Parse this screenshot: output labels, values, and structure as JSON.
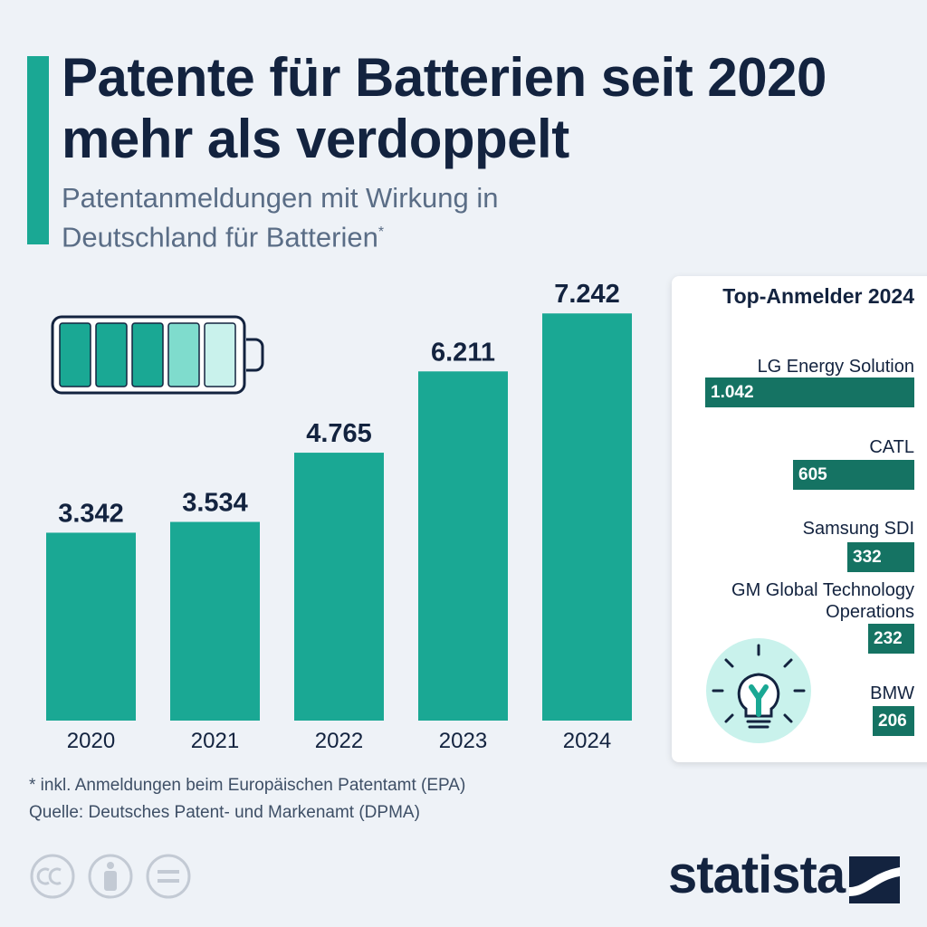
{
  "title": "Patente für Batterien seit 2020 mehr als verdoppelt",
  "subtitle": "Patentanmeldungen mit Wirkung in Deutschland für Batterien",
  "subtitle_marker": "*",
  "chart_data": [
    {
      "type": "bar",
      "categories": [
        "2020",
        "2021",
        "2022",
        "2023",
        "2024"
      ],
      "values": [
        3342,
        3534,
        4765,
        6211,
        7242
      ],
      "value_labels": [
        "3.342",
        "3.534",
        "4.765",
        "6.211",
        "7.242"
      ],
      "ylim": [
        0,
        7600
      ],
      "grid": false,
      "color": "#1aa894"
    },
    {
      "type": "bar",
      "orientation": "horizontal",
      "title": "Top-Anmelder 2024",
      "categories": [
        "LG Energy Solution",
        "CATL",
        "Samsung SDI",
        "GM Global Technology Operations",
        "BMW"
      ],
      "values": [
        1042,
        605,
        332,
        232,
        206
      ],
      "value_labels": [
        "1.042",
        "605",
        "332",
        "232",
        "206"
      ],
      "color": "#157363"
    }
  ],
  "footnote": "* inkl. Anmeldungen beim Europäischen Patentamt (EPA)",
  "source": "Quelle: Deutsches Patent- und Markenamt (DPMA)",
  "brand": "statista",
  "colors": {
    "accent": "#1aa894",
    "dark_bar": "#157363",
    "text": "#13233f",
    "background": "#eef2f7"
  },
  "icons": [
    "battery-icon",
    "lightbulb-icon",
    "cc-icon",
    "attribution-icon",
    "no-derivatives-icon",
    "statista-logo-icon"
  ]
}
